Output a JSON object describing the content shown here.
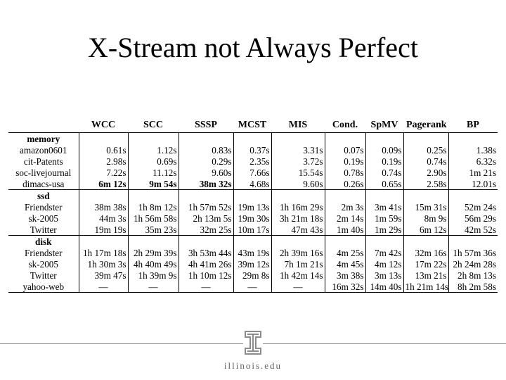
{
  "title": "X-Stream not Always Perfect",
  "columns": [
    "",
    "WCC",
    "SCC",
    "SSSP",
    "MCST",
    "MIS",
    "Cond.",
    "SpMV",
    "Pagerank",
    "BP"
  ],
  "sections": [
    {
      "label": "memory",
      "rows": [
        {
          "name": "amazon0601",
          "cells": [
            "0.61s",
            "1.12s",
            "0.83s",
            "0.37s",
            "3.31s",
            "0.07s",
            "0.09s",
            "0.25s",
            "1.38s"
          ]
        },
        {
          "name": "cit-Patents",
          "cells": [
            "2.98s",
            "0.69s",
            "0.29s",
            "2.35s",
            "3.72s",
            "0.19s",
            "0.19s",
            "0.74s",
            "6.32s"
          ]
        },
        {
          "name": "soc-livejournal",
          "cells": [
            "7.22s",
            "11.12s",
            "9.60s",
            "7.66s",
            "15.54s",
            "0.78s",
            "0.74s",
            "2.90s",
            "1m 21s"
          ]
        },
        {
          "name": "dimacs-usa",
          "cells": [
            "6m 12s",
            "9m 54s",
            "38m 32s",
            "4.68s",
            "9.60s",
            "0.26s",
            "0.65s",
            "2.58s",
            "12.01s"
          ],
          "bold": [
            0,
            1,
            2
          ]
        }
      ]
    },
    {
      "label": "ssd",
      "rows": [
        {
          "name": "Friendster",
          "cells": [
            "38m 38s",
            "1h 8m 12s",
            "1h 57m 52s",
            "19m 13s",
            "1h 16m 29s",
            "2m 3s",
            "3m 41s",
            "15m 31s",
            "52m 24s"
          ]
        },
        {
          "name": "sk-2005",
          "cells": [
            "44m 3s",
            "1h 56m 58s",
            "2h 13m 5s",
            "19m 30s",
            "3h 21m 18s",
            "2m 14s",
            "1m 59s",
            "8m 9s",
            "56m 29s"
          ]
        },
        {
          "name": "Twitter",
          "cells": [
            "19m 19s",
            "35m 23s",
            "32m 25s",
            "10m 17s",
            "47m 43s",
            "1m 40s",
            "1m 29s",
            "6m 12s",
            "42m 52s"
          ]
        }
      ]
    },
    {
      "label": "disk",
      "rows": [
        {
          "name": "Friendster",
          "cells": [
            "1h 17m 18s",
            "2h 29m 39s",
            "3h 53m 44s",
            "43m 19s",
            "2h 39m 16s",
            "4m 25s",
            "7m 42s",
            "32m 16s",
            "1h 57m 36s"
          ]
        },
        {
          "name": "sk-2005",
          "cells": [
            "1h 30m 3s",
            "4h 40m 49s",
            "4h 41m 26s",
            "39m 12s",
            "7h 1m 21s",
            "4m 45s",
            "4m 12s",
            "17m 22s",
            "2h 24m 28s"
          ]
        },
        {
          "name": "Twitter",
          "cells": [
            "39m 47s",
            "1h 39m 9s",
            "1h 10m 12s",
            "29m 8s",
            "1h 42m 14s",
            "3m 38s",
            "3m 13s",
            "13m 21s",
            "2h 8m 13s"
          ]
        },
        {
          "name": "yahoo-web",
          "cells": [
            "—",
            "—",
            "—",
            "—",
            "—",
            "16m 32s",
            "14m 40s",
            "1h 21m 14s",
            "8h 2m 58s"
          ]
        }
      ]
    }
  ],
  "footer": {
    "text": "illinois.edu",
    "logo": "illinois-block-i-logo"
  },
  "colors": {
    "logo_orange": "#e8662b",
    "footer_line": "#8c8c8c"
  }
}
